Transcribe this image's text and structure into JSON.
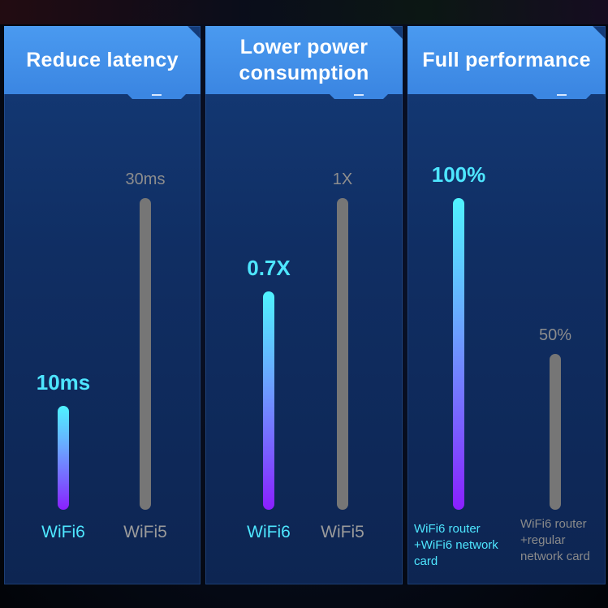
{
  "chart_data": [
    {
      "type": "bar",
      "title": "Reduce latency",
      "categories": [
        "WiFi6",
        "WiFi5"
      ],
      "values": [
        10,
        30
      ],
      "value_labels": [
        "10ms",
        "30ms"
      ],
      "unit": "ms",
      "ylim": [
        0,
        30
      ]
    },
    {
      "type": "bar",
      "title": "Lower power consumption",
      "title_lines": [
        "Lower power",
        "consumption"
      ],
      "categories": [
        "WiFi6",
        "WiFi5"
      ],
      "values": [
        0.7,
        1.0
      ],
      "value_labels": [
        "0.7X",
        "1X"
      ],
      "unit": "X",
      "ylim": [
        0,
        1
      ]
    },
    {
      "type": "bar",
      "title": "Full performance",
      "categories": [
        "WiFi6 router +WiFi6 network card",
        "WiFi6 router +regular network card"
      ],
      "category_lines": [
        [
          "WiFi6 router",
          "+WiFi6 network",
          "card"
        ],
        [
          "WiFi6 router",
          "+regular",
          "network card"
        ]
      ],
      "values": [
        100,
        50
      ],
      "value_labels": [
        "100%",
        "50%"
      ],
      "unit": "%",
      "ylim": [
        0,
        100
      ]
    }
  ],
  "colors": {
    "highlight": "#4ee6ff",
    "other_bar": "#767676",
    "header": "#3b86e2",
    "panel": "#102e63"
  }
}
